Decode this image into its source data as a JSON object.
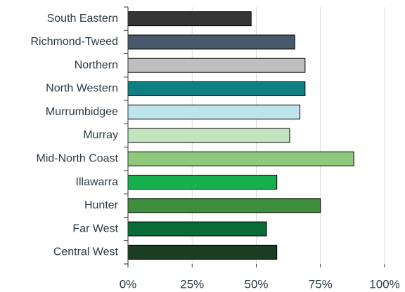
{
  "chart_data": {
    "type": "bar",
    "orientation": "horizontal",
    "categories": [
      "South Eastern",
      "Richmond-Tweed",
      "Northern",
      "North Western",
      "Murrumbidgee",
      "Murray",
      "Mid-North Coast",
      "Illawarra",
      "Hunter",
      "Far West",
      "Central West"
    ],
    "values": [
      48,
      65,
      69,
      69,
      67,
      63,
      88,
      58,
      75,
      54,
      58
    ],
    "colors": [
      "#353535",
      "#47596a",
      "#bfbfbf",
      "#0e7f82",
      "#bfe5ec",
      "#c2e5bf",
      "#8fc97b",
      "#16b04d",
      "#3e8f3c",
      "#096b35",
      "#1c3e22"
    ],
    "xlim": [
      0,
      100
    ],
    "xticks": [
      {
        "value": 0,
        "label": "0%"
      },
      {
        "value": 25,
        "label": "25%"
      },
      {
        "value": 50,
        "label": "50%"
      },
      {
        "value": 75,
        "label": "75%"
      },
      {
        "value": 100,
        "label": "100%"
      }
    ],
    "grid": true
  }
}
